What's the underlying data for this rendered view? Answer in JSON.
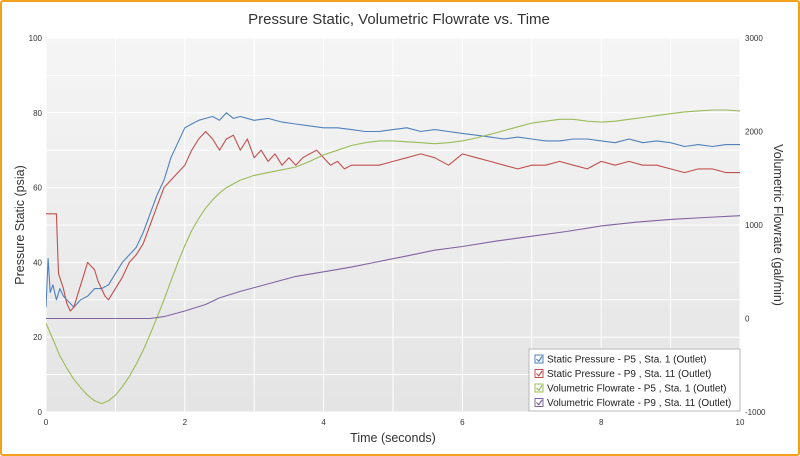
{
  "chart_data": {
    "type": "line",
    "title": "Pressure Static, Volumetric Flowrate vs. Time",
    "xlabel": "Time (seconds)",
    "ylabel_left": "Pressure Static (psia)",
    "ylabel_right": "Volumetric Flowrate (gal/min)",
    "xlim": [
      0,
      10
    ],
    "ylim_left": [
      0,
      100
    ],
    "ylim_right": [
      -1000,
      3000
    ],
    "x_ticks": [
      "0",
      "2",
      "4",
      "6",
      "8",
      "10"
    ],
    "y_left_ticks": [
      "0",
      "20",
      "40",
      "60",
      "80",
      "100"
    ],
    "y_right_ticks": [
      "-1000",
      "0",
      "1000",
      "2000",
      "3000"
    ],
    "grid": true,
    "legend_position": "bottom-right",
    "series": [
      {
        "name": "Static Pressure - P5 , Sta. 1 (Outlet)",
        "axis": "left",
        "color": "#4f81bd",
        "x": [
          0,
          0.03,
          0.06,
          0.1,
          0.15,
          0.2,
          0.25,
          0.3,
          0.35,
          0.4,
          0.5,
          0.6,
          0.7,
          0.8,
          0.9,
          1.0,
          1.1,
          1.2,
          1.3,
          1.4,
          1.5,
          1.6,
          1.7,
          1.8,
          1.9,
          2.0,
          2.1,
          2.2,
          2.3,
          2.4,
          2.5,
          2.6,
          2.7,
          2.8,
          3.0,
          3.2,
          3.4,
          3.6,
          3.8,
          4.0,
          4.2,
          4.4,
          4.6,
          4.8,
          5.0,
          5.2,
          5.4,
          5.6,
          5.8,
          6.0,
          6.2,
          6.4,
          6.6,
          6.8,
          7.0,
          7.2,
          7.4,
          7.6,
          7.8,
          8.0,
          8.2,
          8.4,
          8.6,
          8.8,
          9.0,
          9.2,
          9.4,
          9.6,
          9.8,
          10.0
        ],
        "y": [
          28,
          41,
          32,
          34,
          30,
          33,
          31,
          30,
          29,
          28,
          30,
          31,
          33,
          33,
          34,
          37,
          40,
          42,
          44,
          48,
          53,
          58,
          62,
          68,
          72,
          76,
          77,
          78,
          78.5,
          79,
          78,
          80,
          78.5,
          79,
          78,
          78.5,
          77.5,
          77,
          76.5,
          76,
          76,
          75.5,
          75,
          75,
          75.5,
          76,
          75,
          75.5,
          75,
          74.5,
          74,
          73.5,
          73,
          73.5,
          73,
          72.5,
          72.5,
          73,
          73,
          72.5,
          72,
          73,
          72,
          72.5,
          72,
          71,
          71.5,
          71,
          71.5,
          71.5
        ]
      },
      {
        "name": "Static Pressure - P9 , Sta. 11 (Outlet)",
        "axis": "left",
        "color": "#c0504d",
        "x": [
          0,
          0.15,
          0.18,
          0.25,
          0.3,
          0.35,
          0.4,
          0.45,
          0.5,
          0.55,
          0.6,
          0.65,
          0.7,
          0.75,
          0.8,
          0.85,
          0.9,
          1.0,
          1.1,
          1.2,
          1.3,
          1.4,
          1.5,
          1.6,
          1.7,
          1.8,
          1.9,
          2.0,
          2.1,
          2.2,
          2.3,
          2.4,
          2.5,
          2.6,
          2.7,
          2.8,
          2.9,
          3.0,
          3.1,
          3.2,
          3.3,
          3.4,
          3.5,
          3.6,
          3.7,
          3.8,
          3.9,
          4.0,
          4.1,
          4.2,
          4.3,
          4.4,
          4.6,
          4.8,
          5.0,
          5.2,
          5.4,
          5.6,
          5.8,
          6.0,
          6.2,
          6.4,
          6.6,
          6.8,
          7.0,
          7.2,
          7.4,
          7.6,
          7.8,
          8.0,
          8.2,
          8.4,
          8.6,
          8.8,
          9.0,
          9.2,
          9.4,
          9.6,
          9.8,
          10.0
        ],
        "y": [
          53,
          53,
          37,
          33,
          29,
          27,
          28,
          31,
          34,
          37,
          40,
          39,
          38,
          35,
          33,
          31,
          30,
          33,
          36,
          40,
          42,
          45,
          50,
          55,
          60,
          62,
          64,
          66,
          70,
          73,
          75,
          73,
          70,
          73,
          74,
          70,
          73,
          68,
          70,
          67,
          69,
          66,
          68,
          66,
          68,
          69,
          70,
          68,
          66,
          67,
          65,
          66,
          66,
          66,
          67,
          68,
          69,
          68,
          66,
          69,
          68,
          67,
          66,
          65,
          66,
          66,
          67,
          66,
          65,
          67,
          66,
          67,
          66,
          66,
          65,
          64,
          65,
          65,
          64,
          64
        ]
      },
      {
        "name": "Volumetric Flowrate - P5 , Sta. 1 (Outlet)",
        "axis": "right",
        "color": "#9bbb59",
        "x": [
          0,
          0.1,
          0.2,
          0.3,
          0.4,
          0.5,
          0.6,
          0.7,
          0.8,
          0.9,
          1.0,
          1.1,
          1.2,
          1.3,
          1.4,
          1.5,
          1.6,
          1.7,
          1.8,
          1.9,
          2.0,
          2.1,
          2.2,
          2.3,
          2.4,
          2.5,
          2.6,
          2.7,
          2.8,
          3.0,
          3.2,
          3.4,
          3.6,
          3.8,
          4.0,
          4.2,
          4.4,
          4.6,
          4.8,
          5.0,
          5.2,
          5.4,
          5.6,
          5.8,
          6.0,
          6.2,
          6.4,
          6.6,
          6.8,
          7.0,
          7.2,
          7.4,
          7.6,
          7.8,
          8.0,
          8.2,
          8.4,
          8.6,
          8.8,
          9.0,
          9.2,
          9.4,
          9.6,
          9.8,
          10.0
        ],
        "y": [
          -50,
          -220,
          -400,
          -530,
          -650,
          -740,
          -820,
          -880,
          -910,
          -880,
          -820,
          -730,
          -620,
          -490,
          -340,
          -170,
          10,
          200,
          400,
          600,
          780,
          940,
          1070,
          1180,
          1270,
          1340,
          1400,
          1440,
          1480,
          1530,
          1560,
          1590,
          1620,
          1680,
          1750,
          1800,
          1850,
          1880,
          1900,
          1900,
          1890,
          1880,
          1870,
          1880,
          1900,
          1930,
          1970,
          2010,
          2050,
          2090,
          2110,
          2130,
          2130,
          2110,
          2100,
          2110,
          2130,
          2150,
          2170,
          2190,
          2210,
          2220,
          2230,
          2230,
          2220
        ]
      },
      {
        "name": "Volumetric Flowrate - P9 , Sta. 11 (Outlet)",
        "axis": "right",
        "color": "#8064a2",
        "x": [
          0,
          0.5,
          1.0,
          1.5,
          1.7,
          2.0,
          2.3,
          2.5,
          2.8,
          3.0,
          3.3,
          3.6,
          4.0,
          4.4,
          4.8,
          5.2,
          5.6,
          6.0,
          6.5,
          7.0,
          7.5,
          8.0,
          8.5,
          9.0,
          9.5,
          10.0
        ],
        "y": [
          0,
          0,
          0,
          0,
          20,
          80,
          150,
          220,
          290,
          330,
          390,
          450,
          500,
          550,
          610,
          670,
          730,
          770,
          830,
          880,
          930,
          990,
          1030,
          1060,
          1080,
          1100
        ]
      }
    ]
  }
}
